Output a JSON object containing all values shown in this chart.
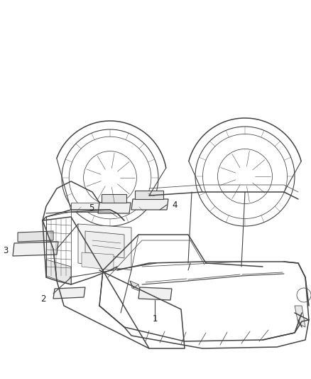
{
  "background_color": "#ffffff",
  "figure_width": 4.38,
  "figure_height": 5.33,
  "dpi": 100,
  "line_color": "#444444",
  "label_color": "#222222",
  "label_fontsize": 8.5,
  "lw_main": 1.1,
  "lw_thin": 0.55,
  "lw_med": 0.8,
  "car_img_b64": ""
}
